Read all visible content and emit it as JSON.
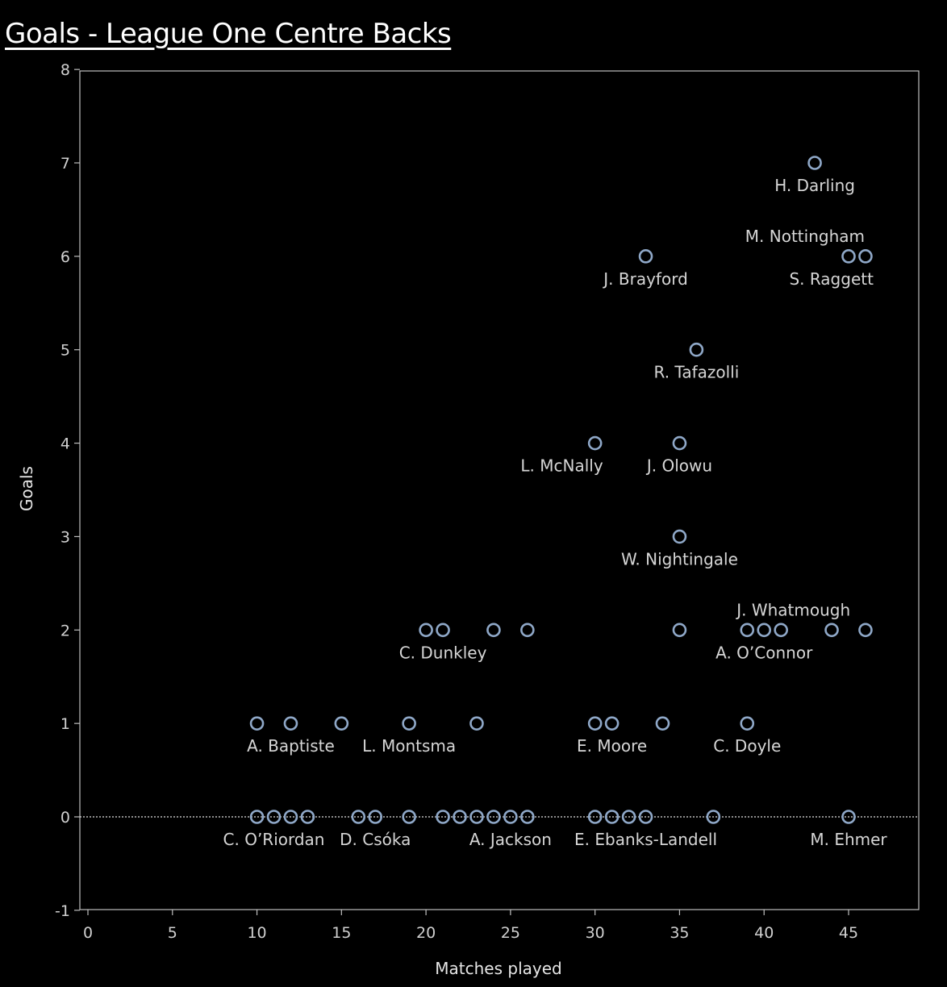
{
  "chart_data": {
    "type": "scatter",
    "title": "Goals - League One Centre Backs",
    "xlabel": "Matches played",
    "ylabel": "Goals",
    "xlim": [
      0,
      49
    ],
    "ylim": [
      -1,
      8
    ],
    "xticks": [
      0,
      5,
      10,
      15,
      20,
      25,
      30,
      35,
      40,
      45
    ],
    "yticks": [
      -1,
      0,
      1,
      2,
      3,
      4,
      5,
      6,
      7,
      8
    ],
    "grid": false,
    "zero_line": true,
    "marker_color": "#8fa8c8",
    "points": [
      {
        "x": 43,
        "y": 7
      },
      {
        "x": 33,
        "y": 6
      },
      {
        "x": 45,
        "y": 6
      },
      {
        "x": 46,
        "y": 6
      },
      {
        "x": 36,
        "y": 5
      },
      {
        "x": 30,
        "y": 4
      },
      {
        "x": 35,
        "y": 4
      },
      {
        "x": 35,
        "y": 3
      },
      {
        "x": 20,
        "y": 2
      },
      {
        "x": 21,
        "y": 2
      },
      {
        "x": 24,
        "y": 2
      },
      {
        "x": 26,
        "y": 2
      },
      {
        "x": 35,
        "y": 2
      },
      {
        "x": 39,
        "y": 2
      },
      {
        "x": 40,
        "y": 2
      },
      {
        "x": 41,
        "y": 2
      },
      {
        "x": 44,
        "y": 2
      },
      {
        "x": 46,
        "y": 2
      },
      {
        "x": 10,
        "y": 1
      },
      {
        "x": 12,
        "y": 1
      },
      {
        "x": 15,
        "y": 1
      },
      {
        "x": 19,
        "y": 1
      },
      {
        "x": 23,
        "y": 1
      },
      {
        "x": 30,
        "y": 1
      },
      {
        "x": 31,
        "y": 1
      },
      {
        "x": 34,
        "y": 1
      },
      {
        "x": 39,
        "y": 1
      },
      {
        "x": 10,
        "y": 0
      },
      {
        "x": 11,
        "y": 0
      },
      {
        "x": 12,
        "y": 0
      },
      {
        "x": 13,
        "y": 0
      },
      {
        "x": 16,
        "y": 0
      },
      {
        "x": 17,
        "y": 0
      },
      {
        "x": 19,
        "y": 0
      },
      {
        "x": 21,
        "y": 0
      },
      {
        "x": 22,
        "y": 0
      },
      {
        "x": 23,
        "y": 0
      },
      {
        "x": 24,
        "y": 0
      },
      {
        "x": 25,
        "y": 0
      },
      {
        "x": 26,
        "y": 0
      },
      {
        "x": 30,
        "y": 0
      },
      {
        "x": 31,
        "y": 0
      },
      {
        "x": 32,
        "y": 0
      },
      {
        "x": 33,
        "y": 0
      },
      {
        "x": 37,
        "y": 0
      },
      {
        "x": 45,
        "y": 0
      }
    ],
    "labels": [
      {
        "text": "H. Darling",
        "x": 43,
        "y": 7,
        "pos": "below"
      },
      {
        "text": "M. Nottingham",
        "x": 45,
        "y": 6,
        "pos": "above-left"
      },
      {
        "text": "J. Brayford",
        "x": 33,
        "y": 6,
        "pos": "below"
      },
      {
        "text": "S. Raggett",
        "x": 46,
        "y": 6,
        "pos": "below-left"
      },
      {
        "text": "R. Tafazolli",
        "x": 36,
        "y": 5,
        "pos": "below"
      },
      {
        "text": "L. McNally",
        "x": 30,
        "y": 4,
        "pos": "below-left"
      },
      {
        "text": "J. Olowu",
        "x": 35,
        "y": 4,
        "pos": "below"
      },
      {
        "text": "W. Nightingale",
        "x": 35,
        "y": 3,
        "pos": "below"
      },
      {
        "text": "J. Whatmough",
        "x": 40,
        "y": 2,
        "pos": "above-right"
      },
      {
        "text": "C. Dunkley",
        "x": 21,
        "y": 2,
        "pos": "below"
      },
      {
        "text": "A. O’Connor",
        "x": 40,
        "y": 2,
        "pos": "below"
      },
      {
        "text": "A. Baptiste",
        "x": 12,
        "y": 1,
        "pos": "below"
      },
      {
        "text": "L. Montsma",
        "x": 19,
        "y": 1,
        "pos": "below"
      },
      {
        "text": "E. Moore",
        "x": 31,
        "y": 1,
        "pos": "below"
      },
      {
        "text": "C. Doyle",
        "x": 39,
        "y": 1,
        "pos": "below"
      },
      {
        "text": "C. O’Riordan",
        "x": 11,
        "y": 0,
        "pos": "below"
      },
      {
        "text": "D. Csóka",
        "x": 17,
        "y": 0,
        "pos": "below"
      },
      {
        "text": "A. Jackson",
        "x": 25,
        "y": 0,
        "pos": "below"
      },
      {
        "text": "E. Ebanks-Landell",
        "x": 33,
        "y": 0,
        "pos": "below"
      },
      {
        "text": "M. Ehmer",
        "x": 45,
        "y": 0,
        "pos": "below"
      }
    ]
  }
}
